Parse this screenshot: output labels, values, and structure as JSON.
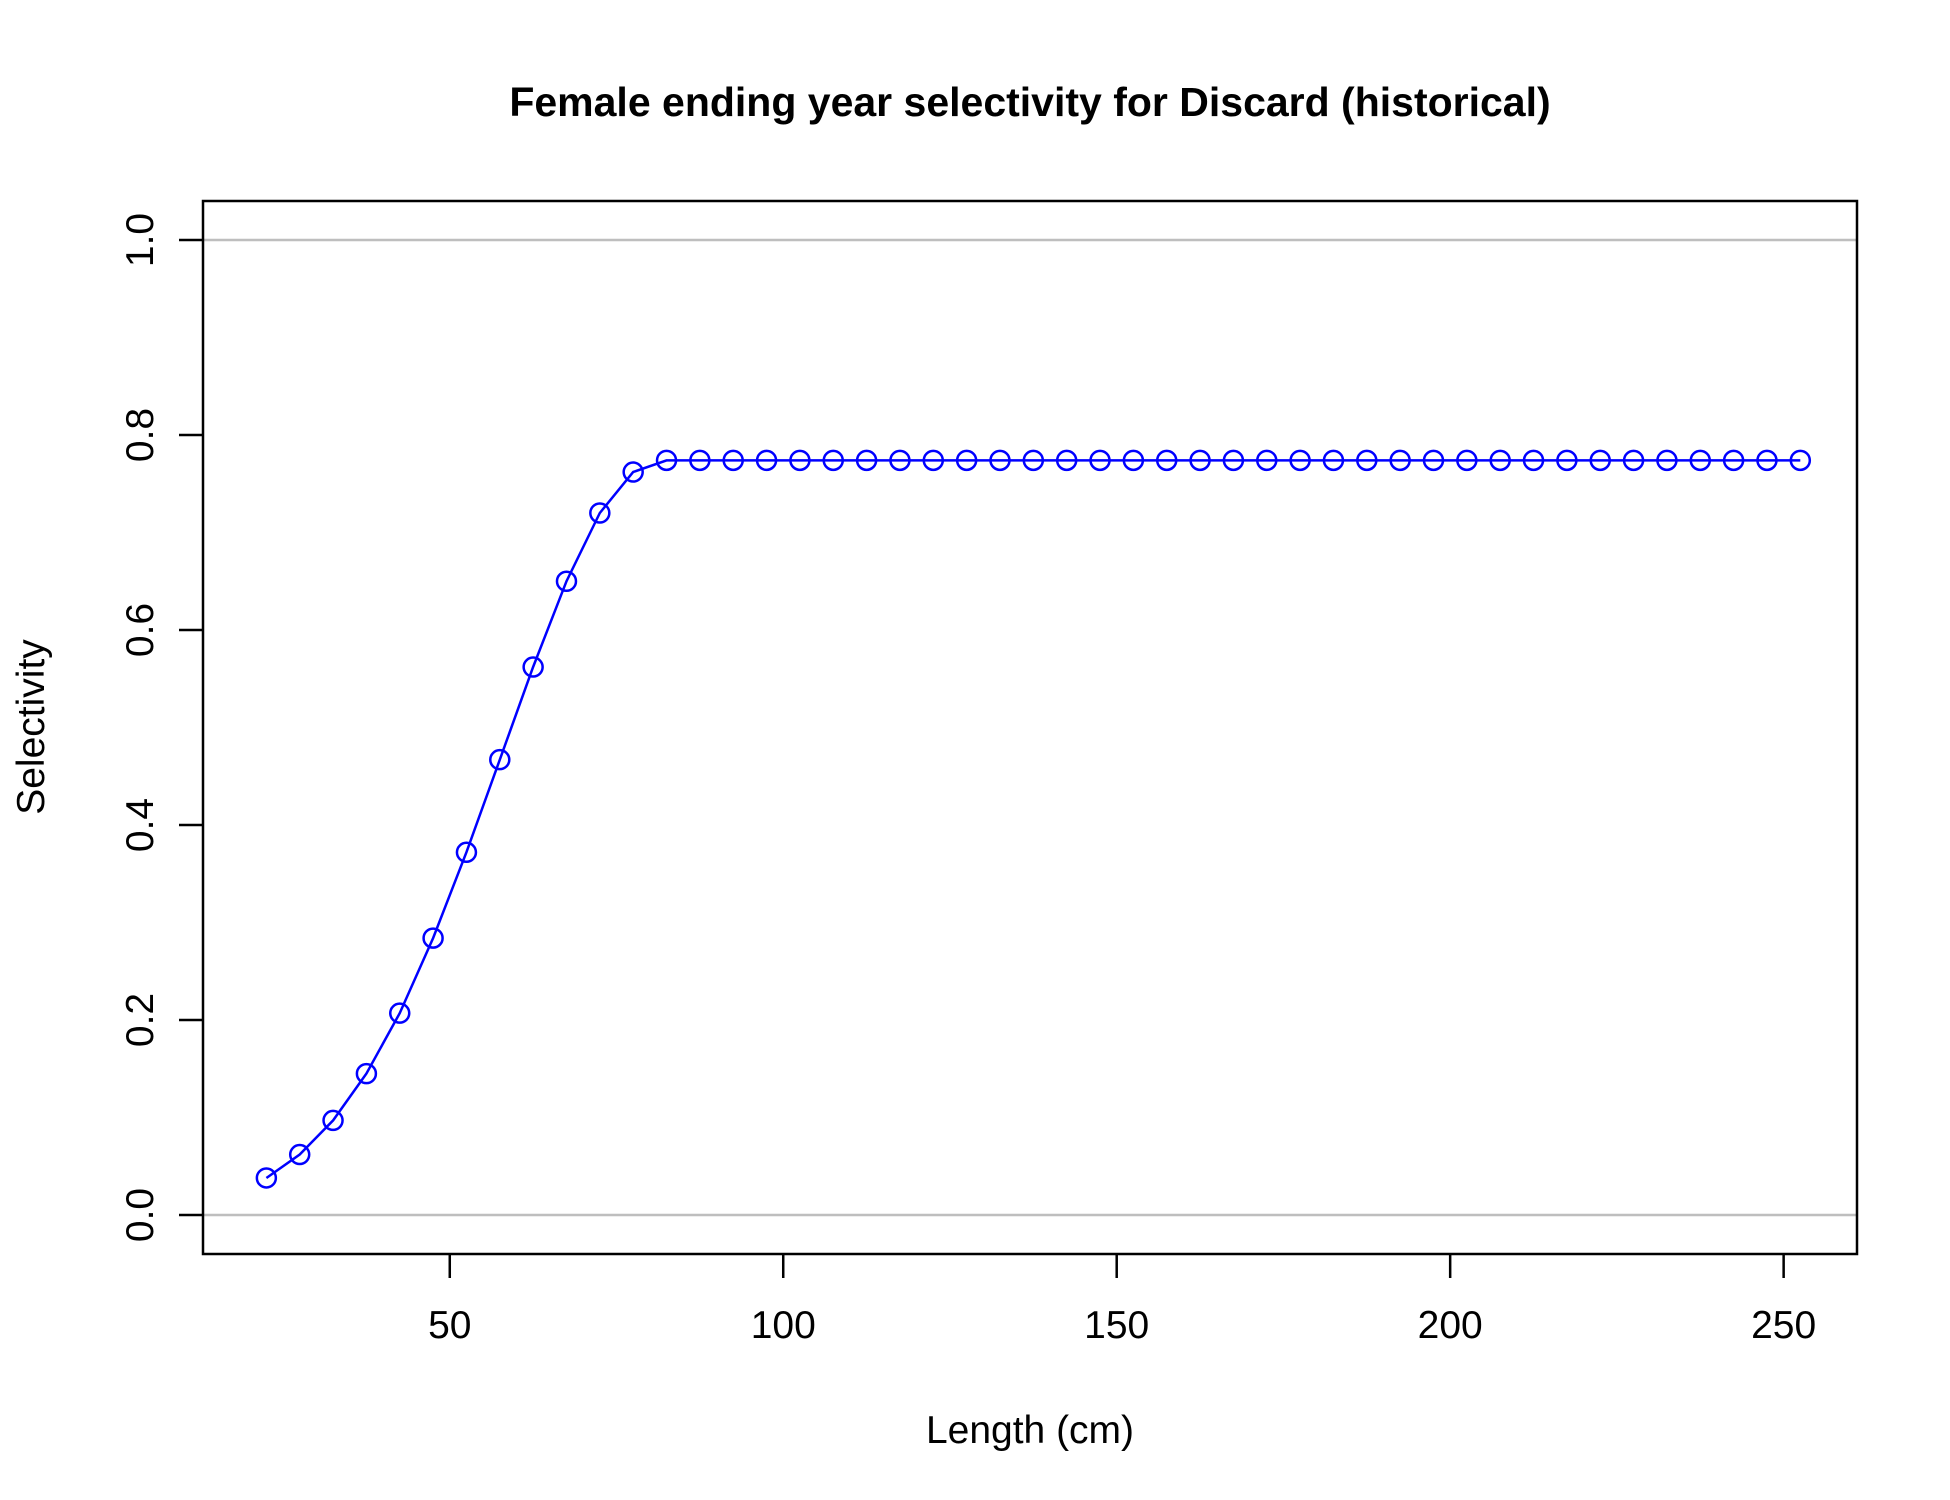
{
  "chart_data": {
    "type": "line",
    "title": "Female ending year selectivity for Discard (historical)",
    "xlabel": "Length (cm)",
    "ylabel": "Selectivity",
    "xlim": [
      13,
      261
    ],
    "ylim": [
      -0.04,
      1.04
    ],
    "x_ticks": [
      50,
      100,
      150,
      200,
      250
    ],
    "x_tick_labels": [
      "50",
      "100",
      "150",
      "200",
      "250"
    ],
    "y_ticks": [
      0,
      0.2,
      0.4,
      0.6,
      0.8,
      1
    ],
    "y_tick_labels": [
      "0.0",
      "0.2",
      "0.4",
      "0.6",
      "0.8",
      "1.0"
    ],
    "reference_lines": [
      0,
      1
    ],
    "reference_line_color": "#bebebe",
    "series_color": "#0000ff",
    "markers": "open-circle",
    "grid": false,
    "x": [
      22.5,
      27.5,
      32.5,
      37.5,
      42.5,
      47.5,
      52.5,
      57.5,
      62.5,
      67.5,
      72.5,
      77.5,
      82.5,
      87.5,
      92.5,
      97.5,
      102.5,
      107.5,
      112.5,
      117.5,
      122.5,
      127.5,
      132.5,
      137.5,
      142.5,
      147.5,
      152.5,
      157.5,
      162.5,
      167.5,
      172.5,
      177.5,
      182.5,
      187.5,
      192.5,
      197.5,
      202.5,
      207.5,
      212.5,
      217.5,
      222.5,
      227.5,
      232.5,
      237.5,
      242.5,
      247.5,
      252.5
    ],
    "series": [
      {
        "values": [
          0.038,
          0.062,
          0.097,
          0.145,
          0.207,
          0.284,
          0.372,
          0.467,
          0.562,
          0.65,
          0.72,
          0.762,
          0.774,
          0.774,
          0.774,
          0.774,
          0.774,
          0.774,
          0.774,
          0.774,
          0.774,
          0.774,
          0.774,
          0.774,
          0.774,
          0.774,
          0.774,
          0.774,
          0.774,
          0.774,
          0.774,
          0.774,
          0.774,
          0.774,
          0.774,
          0.774,
          0.774,
          0.774,
          0.774,
          0.774,
          0.774,
          0.774,
          0.774,
          0.774,
          0.774,
          0.774,
          0.774
        ]
      }
    ]
  }
}
